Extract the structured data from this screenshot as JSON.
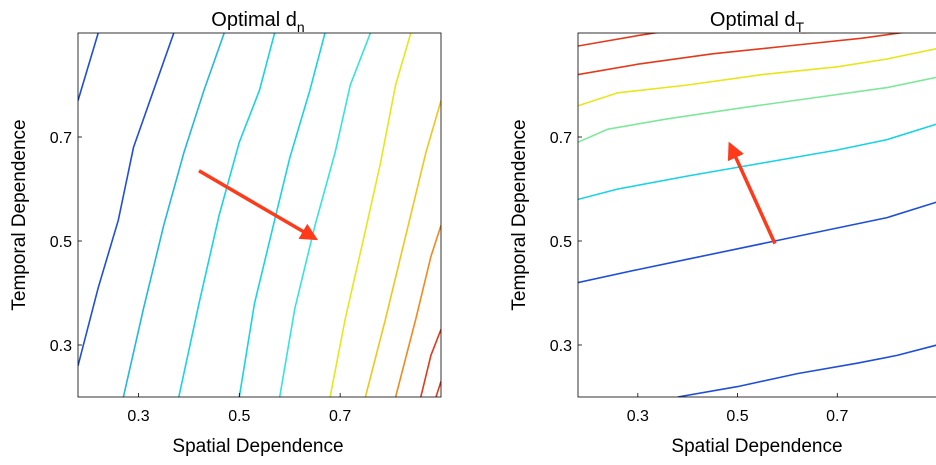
{
  "chart_data": [
    {
      "type": "contour",
      "title": "Optimal d",
      "title_subscript": "n",
      "xlabel": "Spatial Dependence",
      "ylabel": "Temporal Dependence",
      "xlim": [
        0.18,
        0.9
      ],
      "ylim": [
        0.2,
        0.9
      ],
      "xticks": [
        0.3,
        0.5,
        0.7
      ],
      "xtick_labels": [
        "0.3",
        "0.5",
        "0.7"
      ],
      "yticks": [
        0.3,
        0.5,
        0.7
      ],
      "ytick_labels": [
        "0.3",
        "0.5",
        "0.7"
      ],
      "grid": false,
      "contours": [
        {
          "color": "#1f4fd6",
          "points": [
            [
              0.18,
              0.26
            ],
            [
              0.22,
              0.41
            ],
            [
              0.26,
              0.54
            ],
            [
              0.29,
              0.68
            ],
            [
              0.33,
              0.79
            ],
            [
              0.37,
              0.9
            ]
          ]
        },
        {
          "color": "#1f4fd6",
          "points": [
            [
              0.18,
              0.77
            ],
            [
              0.22,
              0.9
            ]
          ]
        },
        {
          "color": "#22b8e3",
          "points": [
            [
              0.27,
              0.2
            ],
            [
              0.31,
              0.37
            ],
            [
              0.35,
              0.53
            ],
            [
              0.39,
              0.67
            ],
            [
              0.43,
              0.79
            ],
            [
              0.47,
              0.9
            ]
          ]
        },
        {
          "color": "#19d2e6",
          "points": [
            [
              0.38,
              0.2
            ],
            [
              0.42,
              0.38
            ],
            [
              0.46,
              0.55
            ],
            [
              0.5,
              0.69
            ],
            [
              0.54,
              0.79
            ],
            [
              0.57,
              0.9
            ]
          ]
        },
        {
          "color": "#19d2e6",
          "points": [
            [
              0.5,
              0.2
            ],
            [
              0.53,
              0.38
            ],
            [
              0.57,
              0.54
            ],
            [
              0.6,
              0.66
            ],
            [
              0.64,
              0.79
            ],
            [
              0.67,
              0.9
            ]
          ]
        },
        {
          "color": "#36e2e0",
          "points": [
            [
              0.58,
              0.2
            ],
            [
              0.61,
              0.37
            ],
            [
              0.65,
              0.53
            ],
            [
              0.69,
              0.67
            ],
            [
              0.72,
              0.8
            ],
            [
              0.76,
              0.9
            ]
          ]
        },
        {
          "color": "#e6e61a",
          "points": [
            [
              0.68,
              0.2
            ],
            [
              0.71,
              0.35
            ],
            [
              0.75,
              0.52
            ],
            [
              0.78,
              0.65
            ],
            [
              0.81,
              0.8
            ],
            [
              0.84,
              0.9
            ]
          ]
        },
        {
          "color": "#f2c51c",
          "points": [
            [
              0.75,
              0.2
            ],
            [
              0.79,
              0.35
            ],
            [
              0.83,
              0.51
            ],
            [
              0.87,
              0.67
            ],
            [
              0.9,
              0.77
            ]
          ]
        },
        {
          "color": "#f08a1f",
          "points": [
            [
              0.81,
              0.2
            ],
            [
              0.85,
              0.35
            ],
            [
              0.88,
              0.47
            ],
            [
              0.9,
              0.53
            ]
          ]
        },
        {
          "color": "#e23a1a",
          "points": [
            [
              0.86,
              0.2
            ],
            [
              0.88,
              0.28
            ],
            [
              0.9,
              0.33
            ]
          ]
        },
        {
          "color": "#e23a1a",
          "points": [
            [
              0.89,
              0.2
            ],
            [
              0.9,
              0.23
            ]
          ]
        }
      ],
      "arrow": {
        "color": "#ff3a1a",
        "from": [
          0.42,
          0.635
        ],
        "to": [
          0.65,
          0.505
        ]
      }
    },
    {
      "type": "contour",
      "title": "Optimal d",
      "title_subscript": "T",
      "xlabel": "Spatial Dependence",
      "ylabel": "Temporal Dependence",
      "xlim": [
        0.18,
        0.9
      ],
      "ylim": [
        0.2,
        0.9
      ],
      "xticks": [
        0.3,
        0.5,
        0.7
      ],
      "xtick_labels": [
        "0.3",
        "0.5",
        "0.7"
      ],
      "yticks": [
        0.3,
        0.5,
        0.7
      ],
      "ytick_labels": [
        "0.3",
        "0.5",
        "0.7"
      ],
      "grid": false,
      "contours": [
        {
          "color": "#1f4fd6",
          "points": [
            [
              0.38,
              0.2
            ],
            [
              0.5,
              0.22
            ],
            [
              0.62,
              0.245
            ],
            [
              0.74,
              0.265
            ],
            [
              0.82,
              0.28
            ],
            [
              0.9,
              0.3
            ]
          ]
        },
        {
          "color": "#1f4fd6",
          "points": [
            [
              0.18,
              0.42
            ],
            [
              0.3,
              0.445
            ],
            [
              0.4,
              0.465
            ],
            [
              0.5,
              0.485
            ],
            [
              0.6,
              0.505
            ],
            [
              0.7,
              0.525
            ],
            [
              0.8,
              0.545
            ],
            [
              0.9,
              0.575
            ]
          ]
        },
        {
          "color": "#19d2e6",
          "points": [
            [
              0.18,
              0.58
            ],
            [
              0.26,
              0.6
            ],
            [
              0.4,
              0.625
            ],
            [
              0.55,
              0.65
            ],
            [
              0.7,
              0.675
            ],
            [
              0.8,
              0.695
            ],
            [
              0.9,
              0.725
            ]
          ]
        },
        {
          "color": "#7ee89a",
          "points": [
            [
              0.18,
              0.69
            ],
            [
              0.24,
              0.715
            ],
            [
              0.36,
              0.735
            ],
            [
              0.5,
              0.755
            ],
            [
              0.65,
              0.775
            ],
            [
              0.8,
              0.795
            ],
            [
              0.9,
              0.815
            ]
          ]
        },
        {
          "color": "#e6e61a",
          "points": [
            [
              0.18,
              0.76
            ],
            [
              0.26,
              0.785
            ],
            [
              0.4,
              0.8
            ],
            [
              0.55,
              0.82
            ],
            [
              0.7,
              0.835
            ],
            [
              0.8,
              0.85
            ],
            [
              0.9,
              0.87
            ]
          ]
        },
        {
          "color": "#f08a1f",
          "points": [
            [
              0.63,
              0.9
            ],
            [
              0.75,
              0.91
            ]
          ]
        },
        {
          "color": "#e23a1a",
          "points": [
            [
              0.18,
              0.82
            ],
            [
              0.3,
              0.84
            ],
            [
              0.45,
              0.86
            ],
            [
              0.6,
              0.875
            ],
            [
              0.75,
              0.89
            ],
            [
              0.9,
              0.91
            ]
          ]
        },
        {
          "color": "#e23a1a",
          "points": [
            [
              0.18,
              0.875
            ],
            [
              0.3,
              0.895
            ],
            [
              0.4,
              0.91
            ]
          ]
        }
      ],
      "arrow": {
        "color": "#ff3a1a",
        "from": [
          0.575,
          0.495
        ],
        "to": [
          0.485,
          0.685
        ]
      }
    }
  ]
}
